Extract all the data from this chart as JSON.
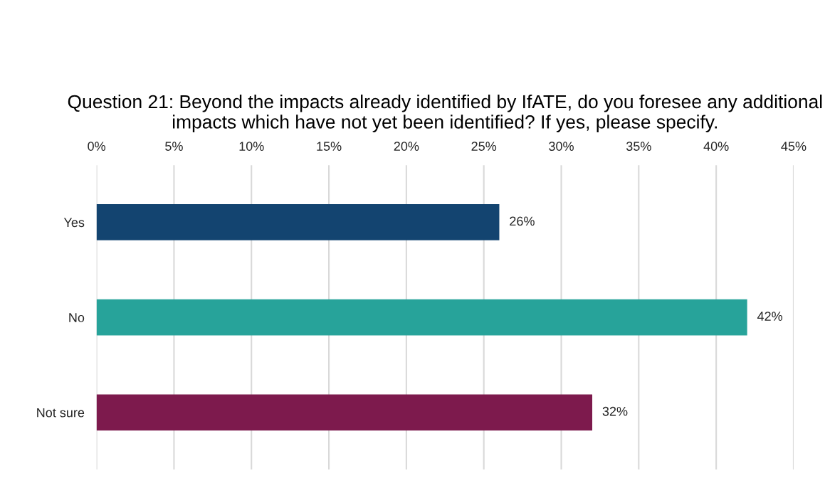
{
  "chart_data": {
    "type": "bar",
    "orientation": "horizontal",
    "title": "Question 21: Beyond the impacts already identified by IfATE, do you foresee any additional impacts which have not yet been identified? If yes, please specify.",
    "categories": [
      "Yes",
      "No",
      "Not sure"
    ],
    "values": [
      26,
      42,
      32
    ],
    "colors": [
      "#134470",
      "#27a39a",
      "#7d1a4d"
    ],
    "value_labels": [
      "26%",
      "42%",
      "32%"
    ],
    "xlim": [
      0,
      45
    ],
    "xticks": [
      {
        "value": 0,
        "label": "0%"
      },
      {
        "value": 5,
        "label": "5%"
      },
      {
        "value": 10,
        "label": "10%"
      },
      {
        "value": 15,
        "label": "15%"
      },
      {
        "value": 20,
        "label": "20%"
      },
      {
        "value": 25,
        "label": "25%"
      },
      {
        "value": 30,
        "label": "30%"
      },
      {
        "value": 35,
        "label": "35%"
      },
      {
        "value": 40,
        "label": "40%"
      },
      {
        "value": 45,
        "label": "45%"
      }
    ],
    "grid": "x",
    "legend": false
  }
}
